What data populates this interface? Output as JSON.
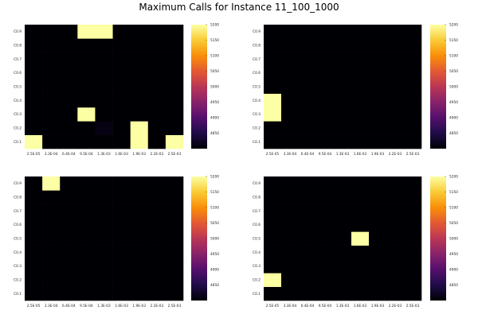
{
  "title": "Maximum Calls for Instance 11_100_1000",
  "colormap": {
    "name": "inferno",
    "stops": [
      "#000004",
      "#1f0c48",
      "#550f6d",
      "#88226a",
      "#ba3655",
      "#e35933",
      "#f98e09",
      "#f9cb35",
      "#fcffa4"
    ]
  },
  "chart_data": [
    {
      "type": "heatmap",
      "x_categories": [
        "2.5E-05",
        "3.3E-04",
        "6.4E-04",
        "9.5E-04",
        "1.3E-03",
        "1.6E-03",
        "1.9E-03",
        "2.2E-03",
        "2.5E-03"
      ],
      "y_categories": [
        "C0.1",
        "C0.2",
        "C0.3",
        "C0.4",
        "C0.5",
        "C0.6",
        "C0.7",
        "C0.8",
        "C0.9"
      ],
      "colorbar": {
        "range": [
          4800,
          5200
        ],
        "ticks": [
          4850,
          4900,
          4950,
          5000,
          5050,
          5100,
          5150,
          5200
        ]
      },
      "values": [
        [
          5200,
          4800,
          4800,
          4800,
          4800,
          4800,
          5200,
          4800,
          5200
        ],
        [
          4800,
          4800,
          4800,
          4800,
          4810,
          4800,
          5200,
          4800,
          4800
        ],
        [
          4800,
          4800,
          4800,
          5200,
          4800,
          4800,
          4800,
          4800,
          4800
        ],
        [
          4800,
          4800,
          4800,
          4800,
          4800,
          4800,
          4800,
          4800,
          4800
        ],
        [
          4800,
          4800,
          4800,
          4800,
          4800,
          4800,
          4800,
          4800,
          4800
        ],
        [
          4800,
          4800,
          4800,
          4800,
          4800,
          4800,
          4800,
          4800,
          4800
        ],
        [
          4800,
          4800,
          4800,
          4800,
          4800,
          4800,
          4800,
          4800,
          4800
        ],
        [
          4800,
          4800,
          4800,
          4800,
          4800,
          4800,
          4800,
          4800,
          4800
        ],
        [
          4800,
          4800,
          4800,
          5200,
          5200,
          4800,
          4800,
          4800,
          4800
        ]
      ]
    },
    {
      "type": "heatmap",
      "x_categories": [
        "2.5E-05",
        "3.3E-04",
        "6.4E-04",
        "9.5E-04",
        "1.3E-03",
        "1.6E-03",
        "1.9E-03",
        "2.2E-03",
        "2.5E-03"
      ],
      "y_categories": [
        "C0.1",
        "C0.2",
        "C0.3",
        "C0.4",
        "C0.5",
        "C0.6",
        "C0.7",
        "C0.8",
        "C0.9"
      ],
      "colorbar": {
        "range": [
          4800,
          5200
        ],
        "ticks": [
          4850,
          4900,
          4950,
          5000,
          5050,
          5100,
          5150,
          5200
        ]
      },
      "values": [
        [
          4800,
          4800,
          4800,
          4800,
          4800,
          4800,
          4800,
          4800,
          4800
        ],
        [
          4800,
          4800,
          4800,
          4800,
          4800,
          4800,
          4800,
          4800,
          4800
        ],
        [
          5200,
          4800,
          4800,
          4800,
          4800,
          4800,
          4800,
          4800,
          4800
        ],
        [
          5200,
          4800,
          4800,
          4800,
          4800,
          4800,
          4800,
          4800,
          4800
        ],
        [
          4800,
          4800,
          4800,
          4800,
          4800,
          4800,
          4800,
          4800,
          4800
        ],
        [
          4800,
          4800,
          4800,
          4800,
          4800,
          4800,
          4800,
          4800,
          4800
        ],
        [
          4800,
          4800,
          4800,
          4800,
          4800,
          4800,
          4800,
          4800,
          4800
        ],
        [
          4800,
          4800,
          4800,
          4800,
          4800,
          4800,
          4800,
          4800,
          4800
        ],
        [
          4800,
          4800,
          4800,
          4800,
          4800,
          4800,
          4800,
          4800,
          4800
        ]
      ]
    },
    {
      "type": "heatmap",
      "x_categories": [
        "2.5E-05",
        "3.3E-04",
        "6.4E-04",
        "9.5E-04",
        "1.3E-03",
        "1.6E-03",
        "1.9E-03",
        "2.2E-03",
        "2.5E-03"
      ],
      "y_categories": [
        "C0.1",
        "C0.2",
        "C0.3",
        "C0.4",
        "C0.5",
        "C0.6",
        "C0.7",
        "C0.8",
        "C0.9"
      ],
      "colorbar": {
        "range": [
          4800,
          5200
        ],
        "ticks": [
          4850,
          4900,
          4950,
          5000,
          5050,
          5100,
          5150,
          5200
        ]
      },
      "values": [
        [
          4800,
          4800,
          4800,
          4800,
          4800,
          4800,
          4800,
          4800,
          4800
        ],
        [
          4800,
          4800,
          4800,
          4800,
          4800,
          4800,
          4800,
          4800,
          4800
        ],
        [
          4800,
          4800,
          4800,
          4800,
          4800,
          4800,
          4800,
          4800,
          4800
        ],
        [
          4800,
          4800,
          4800,
          4800,
          4800,
          4800,
          4800,
          4800,
          4800
        ],
        [
          4800,
          4800,
          4800,
          4800,
          4800,
          4800,
          4800,
          4800,
          4800
        ],
        [
          4800,
          4800,
          4800,
          4800,
          4800,
          4800,
          4800,
          4800,
          4800
        ],
        [
          4800,
          4800,
          4800,
          4800,
          4800,
          4800,
          4800,
          4800,
          4800
        ],
        [
          4800,
          4800,
          4800,
          4800,
          4800,
          4800,
          4800,
          4800,
          4800
        ],
        [
          4800,
          5200,
          4800,
          4800,
          4800,
          4800,
          4800,
          4800,
          4800
        ]
      ]
    },
    {
      "type": "heatmap",
      "x_categories": [
        "2.5E-05",
        "3.3E-04",
        "6.4E-04",
        "9.5E-04",
        "1.3E-03",
        "1.6E-03",
        "1.9E-03",
        "2.2E-03",
        "2.5E-03"
      ],
      "y_categories": [
        "C0.1",
        "C0.2",
        "C0.3",
        "C0.4",
        "C0.5",
        "C0.6",
        "C0.7",
        "C0.8",
        "C0.9"
      ],
      "colorbar": {
        "range": [
          4800,
          5200
        ],
        "ticks": [
          4850,
          4900,
          4950,
          5000,
          5050,
          5100,
          5150,
          5200
        ]
      },
      "values": [
        [
          4800,
          4800,
          4800,
          4800,
          4800,
          4800,
          4800,
          4800,
          4800
        ],
        [
          5200,
          4800,
          4800,
          4800,
          4800,
          4800,
          4800,
          4800,
          4800
        ],
        [
          4800,
          4800,
          4800,
          4800,
          4800,
          4800,
          4800,
          4800,
          4800
        ],
        [
          4800,
          4800,
          4800,
          4800,
          4800,
          4800,
          4800,
          4800,
          4800
        ],
        [
          4800,
          4800,
          4800,
          4800,
          4800,
          5200,
          4800,
          4800,
          4800
        ],
        [
          4800,
          4800,
          4800,
          4800,
          4800,
          4800,
          4800,
          4800,
          4800
        ],
        [
          4800,
          4800,
          4800,
          4800,
          4800,
          4800,
          4800,
          4800,
          4800
        ],
        [
          4800,
          4800,
          4800,
          4800,
          4800,
          4800,
          4800,
          4800,
          4800
        ],
        [
          4800,
          4800,
          4800,
          4800,
          4800,
          4800,
          4800,
          4800,
          4800
        ]
      ]
    }
  ]
}
